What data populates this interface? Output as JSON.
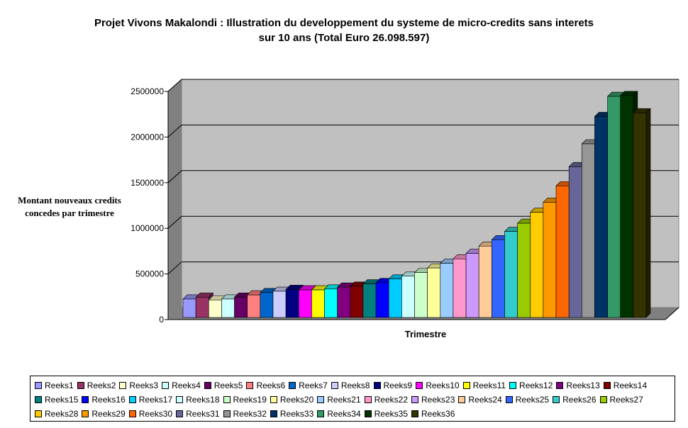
{
  "chart_data": {
    "type": "bar",
    "title": [
      "Projet Vivons Makalondi : Illustration du developpement du systeme de micro-credits sans interets",
      "sur 10 ans (Total Euro 26.098.597)"
    ],
    "ylabel": [
      "Montant nouveaux credits",
      "concedes par trimestre"
    ],
    "xlabel": "Trimestre",
    "ylim": [
      0,
      2500000
    ],
    "yticks": [
      "0",
      "500000",
      "1000000",
      "1500000",
      "2000000",
      "2500000"
    ],
    "grid": true,
    "legend_position": "bottom",
    "series": [
      {
        "name": "Reeks1",
        "value": 140000,
        "color": "#9999ff"
      },
      {
        "name": "Reeks2",
        "value": 160000,
        "color": "#993366"
      },
      {
        "name": "Reeks3",
        "value": 130000,
        "color": "#ffffcc"
      },
      {
        "name": "Reeks4",
        "value": 140000,
        "color": "#ccffff"
      },
      {
        "name": "Reeks5",
        "value": 160000,
        "color": "#660066"
      },
      {
        "name": "Reeks6",
        "value": 185000,
        "color": "#ff8080"
      },
      {
        "name": "Reeks7",
        "value": 210000,
        "color": "#0066cc"
      },
      {
        "name": "Reeks8",
        "value": 225000,
        "color": "#ccccff"
      },
      {
        "name": "Reeks9",
        "value": 245000,
        "color": "#000080"
      },
      {
        "name": "Reeks10",
        "value": 240000,
        "color": "#ff00ff"
      },
      {
        "name": "Reeks11",
        "value": 240000,
        "color": "#ffff00"
      },
      {
        "name": "Reeks12",
        "value": 250000,
        "color": "#00ffff"
      },
      {
        "name": "Reeks13",
        "value": 270000,
        "color": "#800080"
      },
      {
        "name": "Reeks14",
        "value": 280000,
        "color": "#800000"
      },
      {
        "name": "Reeks15",
        "value": 305000,
        "color": "#008080"
      },
      {
        "name": "Reeks16",
        "value": 320000,
        "color": "#0000ff"
      },
      {
        "name": "Reeks17",
        "value": 360000,
        "color": "#00ccff"
      },
      {
        "name": "Reeks18",
        "value": 390000,
        "color": "#ccffff"
      },
      {
        "name": "Reeks19",
        "value": 430000,
        "color": "#ccffcc"
      },
      {
        "name": "Reeks20",
        "value": 480000,
        "color": "#ffff99"
      },
      {
        "name": "Reeks21",
        "value": 530000,
        "color": "#99ccff"
      },
      {
        "name": "Reeks22",
        "value": 580000,
        "color": "#ff99cc"
      },
      {
        "name": "Reeks23",
        "value": 640000,
        "color": "#cc99ff"
      },
      {
        "name": "Reeks24",
        "value": 720000,
        "color": "#ffcc99"
      },
      {
        "name": "Reeks25",
        "value": 790000,
        "color": "#3366ff"
      },
      {
        "name": "Reeks26",
        "value": 880000,
        "color": "#33cccc"
      },
      {
        "name": "Reeks27",
        "value": 970000,
        "color": "#99cc00"
      },
      {
        "name": "Reeks28",
        "value": 1090000,
        "color": "#ffcc00"
      },
      {
        "name": "Reeks29",
        "value": 1200000,
        "color": "#ff9900"
      },
      {
        "name": "Reeks30",
        "value": 1380000,
        "color": "#ff6600"
      },
      {
        "name": "Reeks31",
        "value": 1590000,
        "color": "#666699"
      },
      {
        "name": "Reeks32",
        "value": 1840000,
        "color": "#969696"
      },
      {
        "name": "Reeks33",
        "value": 2140000,
        "color": "#003366"
      },
      {
        "name": "Reeks34",
        "value": 2360000,
        "color": "#339966"
      },
      {
        "name": "Reeks35",
        "value": 2370000,
        "color": "#003300"
      },
      {
        "name": "Reeks36",
        "value": 2180000,
        "color": "#333300"
      }
    ]
  }
}
